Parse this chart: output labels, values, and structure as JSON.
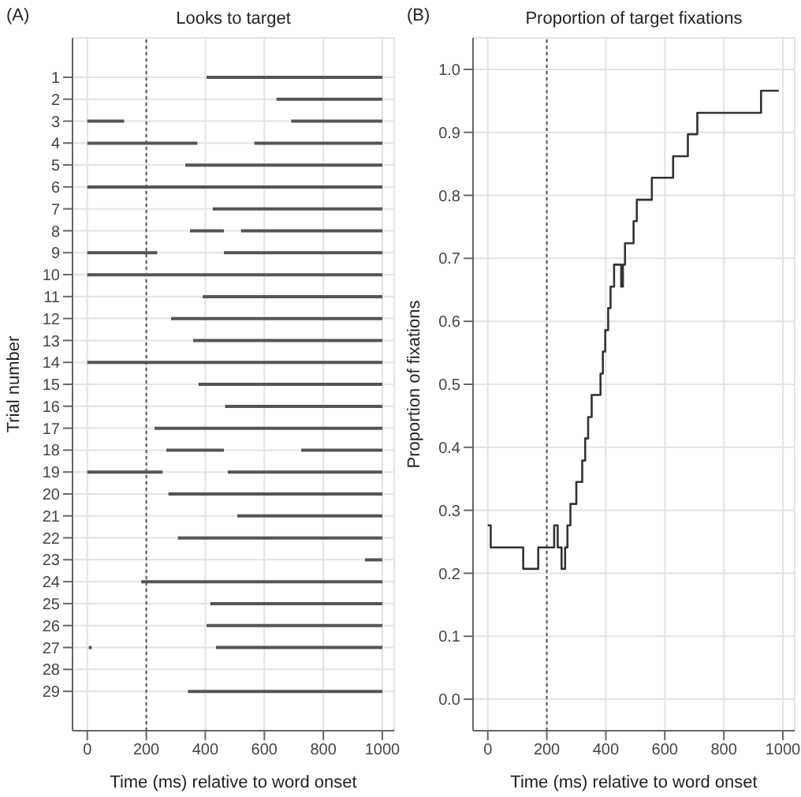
{
  "chart_data": [
    {
      "type": "bar",
      "orientation": "horizontal",
      "title": "Looks to target",
      "xlabel": "Time (ms) relative to word onset",
      "ylabel": "Trial number",
      "annotations": [
        "(A)"
      ],
      "categories": [
        "1",
        "2",
        "3",
        "4",
        "5",
        "6",
        "7",
        "8",
        "9",
        "10",
        "11",
        "12",
        "13",
        "14",
        "15",
        "16",
        "17",
        "18",
        "19",
        "20",
        "21",
        "22",
        "23",
        "24",
        "25",
        "26",
        "27",
        "28",
        "29"
      ],
      "series": [
        {
          "color": "#555555",
          "base": [
            404,
            641,
            0,
            0,
            332,
            0,
            425,
            348,
            0,
            0,
            391,
            284,
            359,
            0,
            377,
            467,
            228,
            268,
            0,
            275,
            508,
            307,
            941,
            183,
            417,
            404,
            5,
            null,
            341
          ],
          "values": [
            596,
            359,
            125,
            373,
            668,
            1000,
            575,
            115,
            237,
            1000,
            609,
            716,
            641,
            1000,
            623,
            533,
            772,
            195,
            255,
            725,
            492,
            693,
            59,
            817,
            583,
            596,
            10,
            null,
            659
          ]
        },
        {
          "color": "#555555",
          "base": [
            null,
            null,
            691,
            566,
            null,
            null,
            null,
            521,
            463,
            null,
            null,
            null,
            null,
            null,
            null,
            null,
            null,
            725,
            476,
            null,
            null,
            null,
            null,
            null,
            null,
            null,
            436,
            null,
            null
          ],
          "values": [
            null,
            null,
            309,
            434,
            null,
            null,
            null,
            479,
            537,
            null,
            null,
            null,
            null,
            null,
            null,
            null,
            null,
            275,
            524,
            null,
            null,
            null,
            null,
            null,
            null,
            null,
            564,
            null,
            null
          ]
        }
      ],
      "xlim": [
        -50,
        1040
      ],
      "xticks": [
        0,
        200,
        400,
        600,
        800,
        1000
      ],
      "grid": true,
      "ref_lines": [
        {
          "axis": "x",
          "value": 200,
          "color": "#555555",
          "line_style": "dotted"
        }
      ]
    },
    {
      "type": "step",
      "title": "Proportion of target fixations",
      "xlabel": "Time (ms) relative to word onset",
      "ylabel": "Proportion of fixations",
      "annotations": [
        "(B)"
      ],
      "x": [
        0,
        10,
        120,
        171,
        225,
        237,
        250,
        262,
        270,
        280,
        300,
        320,
        330,
        340,
        352,
        382,
        390,
        398,
        408,
        416,
        428,
        452,
        458,
        465,
        494,
        505,
        556,
        628,
        678,
        710,
        926,
        986
      ],
      "series": [
        {
          "color": "#333333",
          "values": [
            0.276,
            0.241,
            0.207,
            0.241,
            0.276,
            0.241,
            0.207,
            0.241,
            0.276,
            0.31,
            0.345,
            0.379,
            0.414,
            0.448,
            0.483,
            0.517,
            0.552,
            0.586,
            0.621,
            0.655,
            0.69,
            0.655,
            0.69,
            0.724,
            0.759,
            0.793,
            0.828,
            0.862,
            0.897,
            0.931,
            0.966,
            0.966
          ]
        }
      ],
      "xlim": [
        -50,
        1040
      ],
      "xticks": [
        0,
        200,
        400,
        600,
        800,
        1000
      ],
      "ylim": [
        -0.05,
        1.05
      ],
      "yticks": [
        {
          "value": 0,
          "label": "0.0"
        },
        {
          "value": 0.1,
          "label": "0.1"
        },
        {
          "value": 0.2,
          "label": "0.2"
        },
        {
          "value": 0.3,
          "label": "0.3"
        },
        {
          "value": 0.4,
          "label": "0.4"
        },
        {
          "value": 0.5,
          "label": "0.5"
        },
        {
          "value": 0.6,
          "label": "0.6"
        },
        {
          "value": 0.7,
          "label": "0.7"
        },
        {
          "value": 0.8,
          "label": "0.8"
        },
        {
          "value": 0.9,
          "label": "0.9"
        },
        {
          "value": 1,
          "label": "1.0"
        }
      ],
      "grid": true,
      "ref_lines": [
        {
          "axis": "x",
          "value": 200,
          "color": "#555555",
          "line_style": "dotted"
        }
      ]
    }
  ]
}
